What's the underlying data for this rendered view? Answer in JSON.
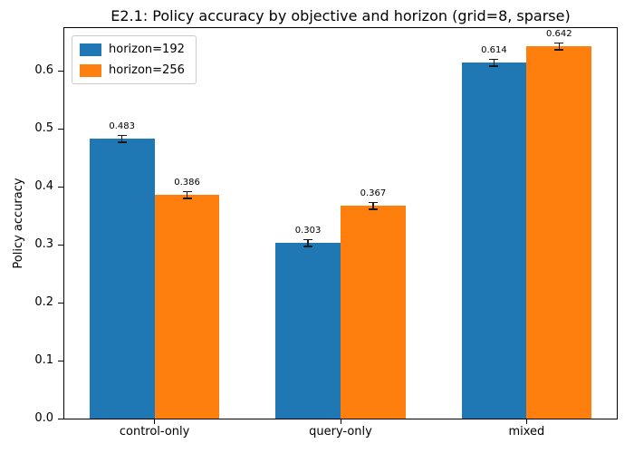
{
  "chart_data": {
    "type": "bar",
    "title": "E2.1: Policy accuracy by objective and horizon (grid=8, sparse)",
    "xlabel": "",
    "ylabel": "Policy accuracy",
    "categories": [
      "control-only",
      "query-only",
      "mixed"
    ],
    "series": [
      {
        "name": "horizon=192",
        "color": "#1f77b4",
        "values": [
          0.483,
          0.303,
          0.614
        ],
        "labels": [
          "0.483",
          "0.303",
          "0.614"
        ]
      },
      {
        "name": "horizon=256",
        "color": "#ff7f0e",
        "values": [
          0.386,
          0.367,
          0.642
        ],
        "labels": [
          "0.386",
          "0.367",
          "0.642"
        ]
      }
    ],
    "ylim": [
      0,
      0.674
    ],
    "yticks": [
      "0.0",
      "0.1",
      "0.2",
      "0.3",
      "0.4",
      "0.5",
      "0.6"
    ],
    "grid": false,
    "legend_position": "upper left",
    "error_bars": true,
    "bar_width": 0.35,
    "background": "#ffffff",
    "axis_color": "#000000"
  }
}
